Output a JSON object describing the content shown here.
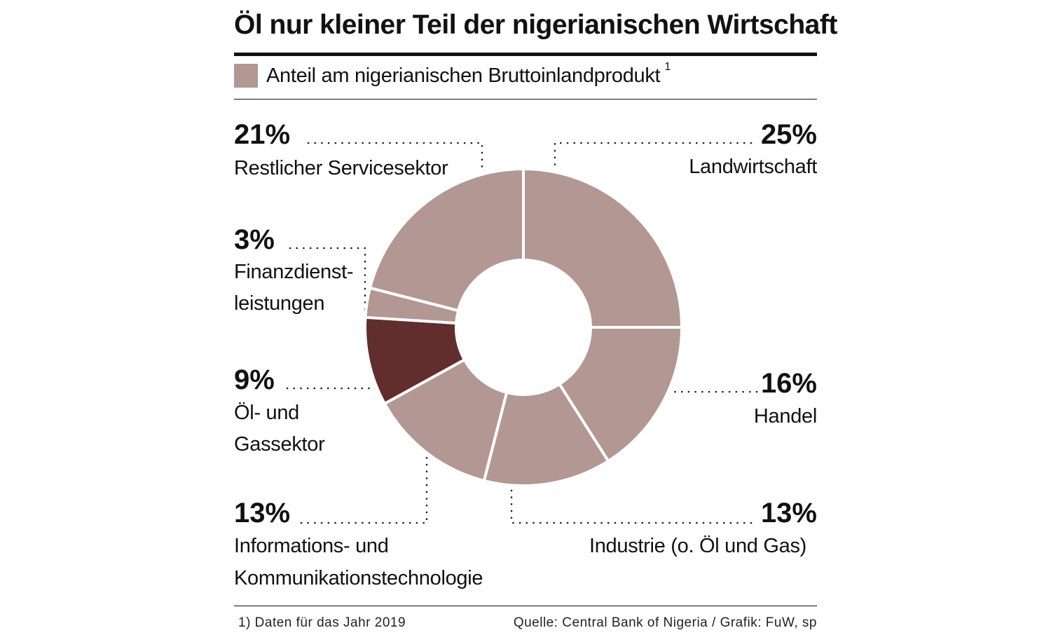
{
  "title": "Öl nur kleiner Teil der nigerianischen Wirtschaft",
  "legend": {
    "label": "Anteil am nigerianischen Bruttoinlandprodukt",
    "footnote_ref": "1"
  },
  "chart_data": {
    "type": "pie",
    "title": "Öl nur kleiner Teil der nigerianischen Wirtschaft",
    "series_name": "Anteil am nigerianischen Bruttoinlandprodukt",
    "unit": "%",
    "categories": [
      "Landwirtschaft",
      "Handel",
      "Industrie (o. Öl und Gas)",
      "Informations- und Kommunikationstechnologie",
      "Öl- und Gassektor",
      "Finanzdienstleistungen",
      "Restlicher Servicesektor"
    ],
    "values": [
      25,
      16,
      13,
      13,
      9,
      3,
      21
    ],
    "highlight": "Öl- und Gassektor"
  },
  "labels": {
    "landwirtschaft": {
      "pct": "25%",
      "name": "Landwirtschaft"
    },
    "handel": {
      "pct": "16%",
      "name": "Handel"
    },
    "industrie": {
      "pct": "13%",
      "name": "Industrie (o. Öl und Gas)"
    },
    "ikt": {
      "pct": "13%",
      "line1": "Informations- und",
      "line2": "Kommunikationstechnologie"
    },
    "oel": {
      "pct": "9%",
      "line1": "Öl- und",
      "line2": "Gassektor"
    },
    "finanz": {
      "pct": "3%",
      "line1": "Finanzdienst-",
      "line2": "leistungen"
    },
    "service": {
      "pct": "21%",
      "name": "Restlicher Servicesektor"
    }
  },
  "footer": {
    "note": "1) Daten für das Jahr 2019",
    "source": "Quelle: Central Bank of Nigeria  / Grafik: FuW, sp"
  },
  "colors": {
    "segment": "#b29793",
    "highlight": "#612d2d",
    "text": "#111111",
    "separator": "#ffffff"
  }
}
